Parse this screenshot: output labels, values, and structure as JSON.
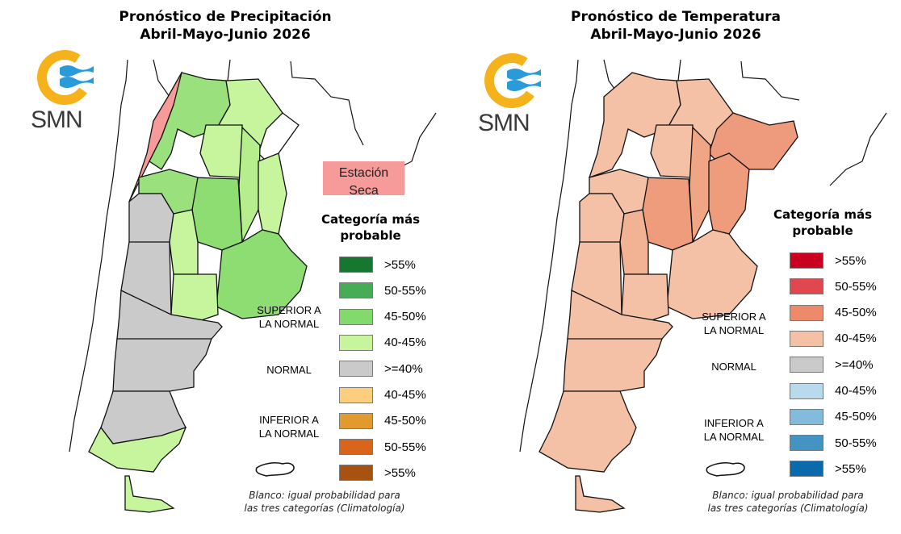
{
  "panels": [
    {
      "id": "precipitation",
      "title_line1": "Pronóstico de Precipitación",
      "title_line2": "Abril-Mayo-Junio 2026",
      "logo_text": "SMN",
      "annotation": "Estación Seca",
      "legend_title_line1": "Categoría más",
      "legend_title_line2": "probable",
      "category_labels": {
        "above_line1": "SUPERIOR A",
        "above_line2": "LA NORMAL",
        "normal": "NORMAL",
        "below_line1": "INFERIOR A",
        "below_line2": "LA NORMAL"
      },
      "legend": [
        {
          "label": ">55%",
          "color": "#16772f",
          "category": "above"
        },
        {
          "label": "50-55%",
          "color": "#46ac55",
          "category": "above"
        },
        {
          "label": "45-50%",
          "color": "#82d96c",
          "category": "above"
        },
        {
          "label": "40-45%",
          "color": "#c7f59d",
          "category": "above"
        },
        {
          "label": ">=40%",
          "color": "#cacaca",
          "category": "normal"
        },
        {
          "label": "40-45%",
          "color": "#fdce7d",
          "category": "below"
        },
        {
          "label": "45-50%",
          "color": "#e2992e",
          "category": "below"
        },
        {
          "label": "50-55%",
          "color": "#d9651c",
          "category": "below"
        },
        {
          "label": ">55%",
          "color": "#a85212",
          "category": "below"
        }
      ],
      "dry_season_color": "#f79a9a",
      "footnote_line1": "Blanco: igual probabilidad para",
      "footnote_line2": "las tres categorías (Climatología)"
    },
    {
      "id": "temperature",
      "title_line1": "Pronóstico de Temperatura",
      "title_line2": "Abril-Mayo-Junio 2026",
      "logo_text": "SMN",
      "legend_title_line1": "Categoría más",
      "legend_title_line2": "probable",
      "category_labels": {
        "above_line1": "SUPERIOR A",
        "above_line2": "LA NORMAL",
        "normal": "NORMAL",
        "below_line1": "INFERIOR A",
        "below_line2": "LA NORMAL"
      },
      "legend": [
        {
          "label": ">55%",
          "color": "#ca0020",
          "category": "above"
        },
        {
          "label": "50-55%",
          "color": "#e0474f",
          "category": "above"
        },
        {
          "label": "45-50%",
          "color": "#ee8a6c",
          "category": "above"
        },
        {
          "label": "40-45%",
          "color": "#f4c1a6",
          "category": "above"
        },
        {
          "label": ">=40%",
          "color": "#cacaca",
          "category": "normal"
        },
        {
          "label": "40-45%",
          "color": "#b9d9ec",
          "category": "below"
        },
        {
          "label": "45-50%",
          "color": "#83bbdc",
          "category": "below"
        },
        {
          "label": "50-55%",
          "color": "#4393c3",
          "category": "below"
        },
        {
          "label": ">55%",
          "color": "#0b6aac",
          "category": "below"
        }
      ],
      "footnote_line1": "Blanco: igual probabilidad para",
      "footnote_line2": "las tres categorías (Climatología)"
    }
  ]
}
